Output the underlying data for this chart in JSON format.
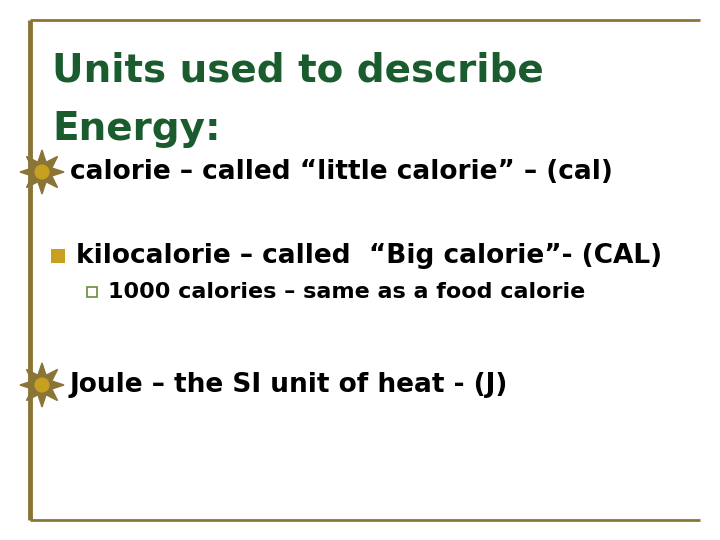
{
  "background_color": "#ffffff",
  "border_color": "#8B7536",
  "title_line1": "Units used to describe",
  "title_line2": "Energy:",
  "title_color": "#1a5c2e",
  "title_fontsize": 28,
  "bullet1_text": "calorie – called “little calorie” – (cal)",
  "bullet1_fontsize": 19,
  "bullet1_marker_color_outer": "#8B7536",
  "bullet1_marker_color_inner": "#c8a020",
  "bullet2_text": "kilocalorie – called  “Big calorie”- (CAL)",
  "bullet2_fontsize": 19,
  "bullet2_marker_color": "#c8a020",
  "sub_bullet_text": "1000 calories – same as a food calorie",
  "sub_bullet_fontsize": 16,
  "sub_marker_edge_color": "#6a8c3a",
  "bullet3_text": "Joule – the SI unit of heat - (J)",
  "bullet3_fontsize": 19,
  "bullet3_marker_color_outer": "#8B7536",
  "bullet3_marker_color_inner": "#c8a020",
  "text_color": "#000000"
}
